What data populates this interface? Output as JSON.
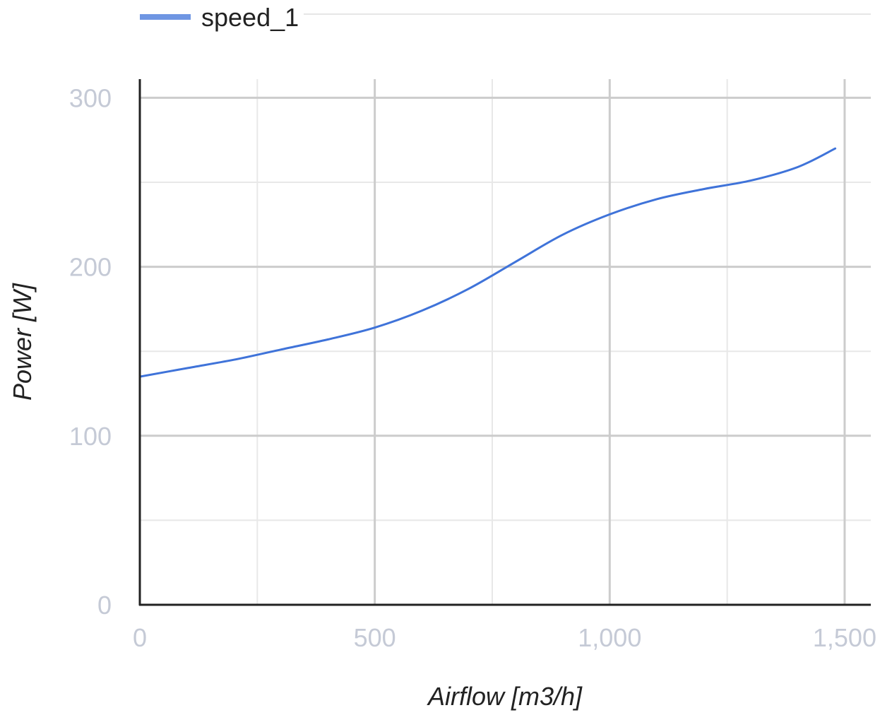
{
  "chart_data": {
    "type": "line",
    "xlabel": "Airflow [m3/h]",
    "ylabel": "Power [W]",
    "xlim": [
      0,
      1550
    ],
    "ylim": [
      0,
      300
    ],
    "x_ticks": [
      0,
      500,
      1000,
      1500
    ],
    "x_tick_labels": [
      "0",
      "500",
      "1,000",
      "1,500"
    ],
    "y_ticks": [
      0,
      100,
      200,
      300
    ],
    "y_tick_labels": [
      "0",
      "100",
      "200",
      "300"
    ],
    "minor_x_ticks": [
      250,
      750,
      1250
    ],
    "minor_y_ticks": [
      50,
      150,
      250
    ],
    "grid": true,
    "legend_position": "top",
    "series": [
      {
        "name": "speed_1",
        "color": "#3f73d9",
        "x": [
          0,
          100,
          200,
          300,
          400,
          500,
          600,
          700,
          800,
          900,
          1000,
          1100,
          1200,
          1300,
          1400,
          1480
        ],
        "y": [
          135,
          140,
          145,
          151,
          157,
          164,
          174,
          187,
          203,
          219,
          231,
          240,
          246,
          251,
          259,
          270
        ]
      }
    ]
  },
  "colors": {
    "axis": "#222222",
    "major_grid": "#cccccc",
    "minor_grid": "#e8e8e8",
    "tick_text": "#c5cad6"
  }
}
